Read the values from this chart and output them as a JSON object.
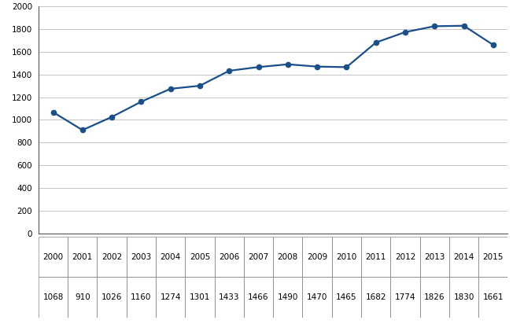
{
  "years": [
    2000,
    2001,
    2002,
    2003,
    2004,
    2005,
    2006,
    2007,
    2008,
    2009,
    2010,
    2011,
    2012,
    2013,
    2014,
    2015
  ],
  "values": [
    1068,
    910,
    1026,
    1160,
    1274,
    1301,
    1433,
    1466,
    1490,
    1470,
    1465,
    1682,
    1774,
    1826,
    1830,
    1661
  ],
  "ylim": [
    0,
    2000
  ],
  "yticks": [
    0,
    200,
    400,
    600,
    800,
    1000,
    1200,
    1400,
    1600,
    1800,
    2000
  ],
  "line_color": "#1a4f8a",
  "marker_color": "#1a4f8a",
  "background_color": "#ffffff",
  "grid_color": "#bbbbbb",
  "spine_color": "#555555",
  "table_line_color": "#888888",
  "font_size_ticks": 7.5,
  "font_size_table": 7.5
}
